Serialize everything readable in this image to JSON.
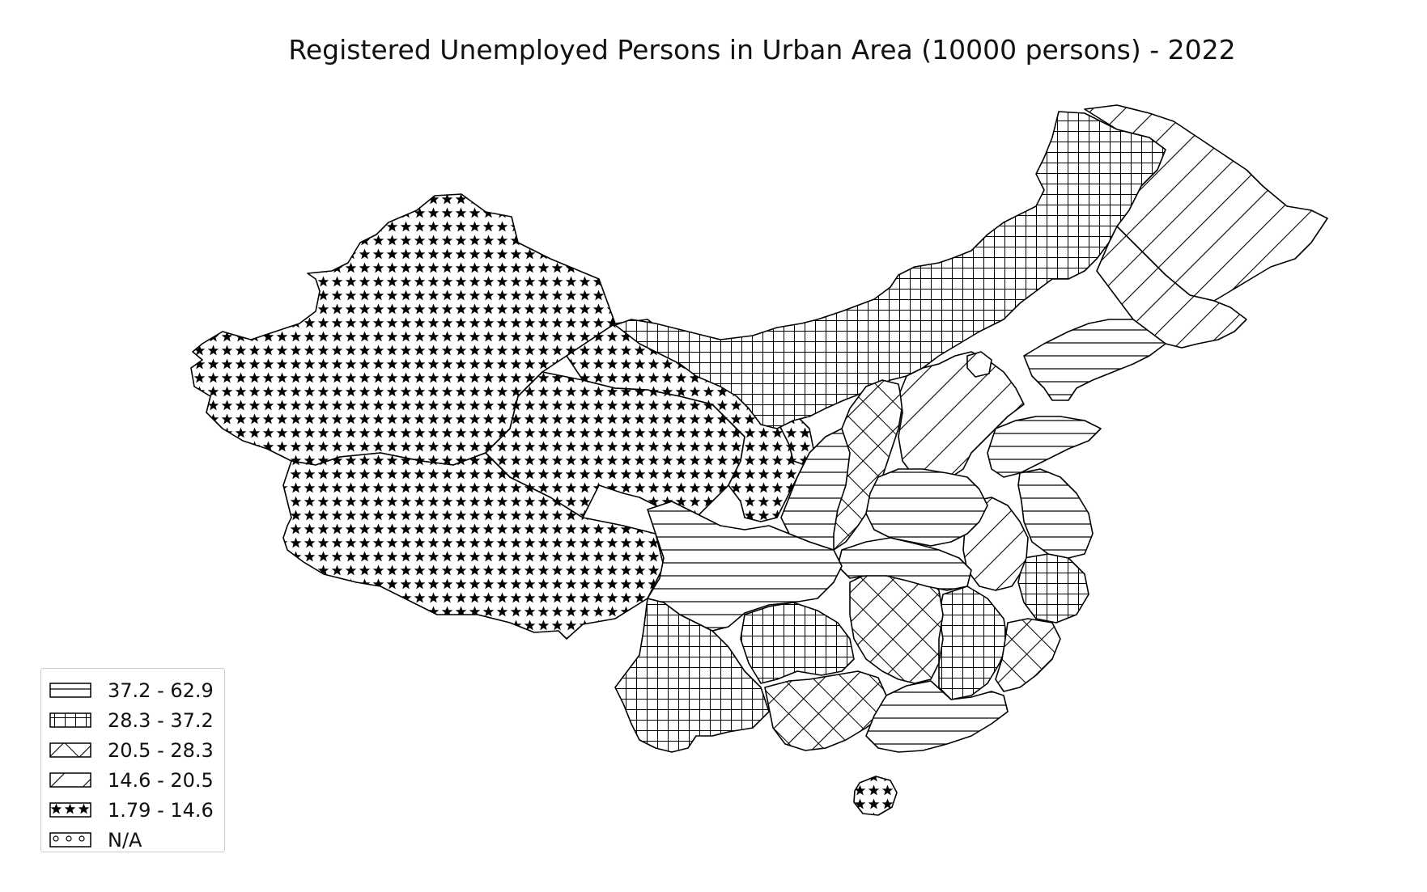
{
  "title": "Registered Unemployed Persons in Urban Area (10000 persons) - 2022",
  "legend": {
    "items": [
      {
        "label": "37.2 - 62.9",
        "pattern": "hlines"
      },
      {
        "label": "28.3 - 37.2",
        "pattern": "grid"
      },
      {
        "label": "20.5 - 28.3",
        "pattern": "crosshatch"
      },
      {
        "label": "14.6 - 20.5",
        "pattern": "diagonal"
      },
      {
        "label": "1.79 - 14.6",
        "pattern": "stars"
      },
      {
        "label": "N/A",
        "pattern": "circles"
      }
    ]
  },
  "colors": {
    "stroke": "#000000",
    "background": "#ffffff"
  }
}
